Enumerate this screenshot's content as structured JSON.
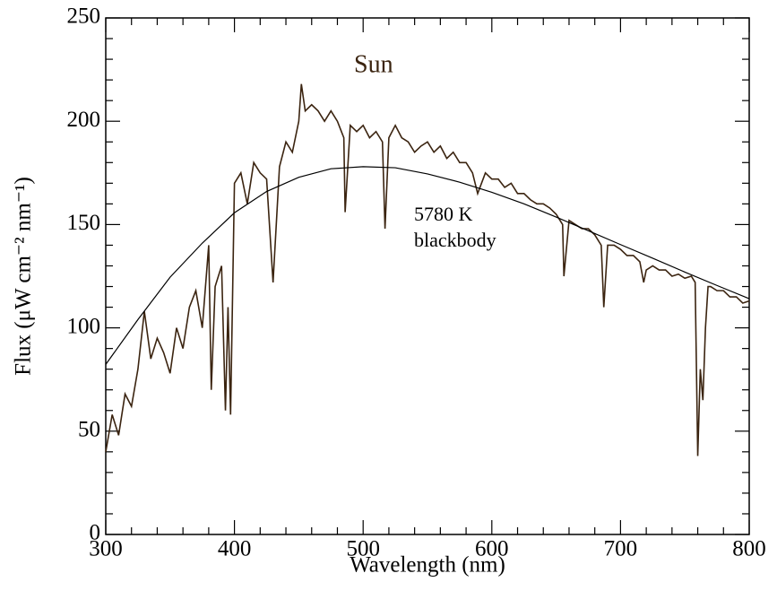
{
  "chart_data": {
    "type": "line",
    "xlabel": "Wavelength  (nm)",
    "ylabel": "Flux  (μW cm⁻² nm⁻¹)",
    "annotations": [
      "Sun",
      "5780 K",
      "blackbody"
    ],
    "xlim": [
      300,
      800
    ],
    "ylim": [
      0,
      250
    ],
    "xticks": [
      300,
      400,
      500,
      600,
      700,
      800
    ],
    "yticks": [
      0,
      50,
      100,
      150,
      200,
      250
    ],
    "xticks_minor": [
      320,
      340,
      360,
      380,
      420,
      440,
      460,
      480,
      520,
      540,
      560,
      580,
      620,
      640,
      660,
      680,
      720,
      740,
      760,
      780
    ],
    "yticks_minor": [
      10,
      20,
      30,
      40,
      60,
      70,
      80,
      90,
      110,
      120,
      130,
      140,
      160,
      170,
      180,
      190,
      210,
      220,
      230,
      240
    ],
    "series": [
      {
        "color": "#3b2410",
        "x": [
          300,
          305,
          310,
          315,
          320,
          325,
          330,
          335,
          340,
          345,
          350,
          355,
          360,
          365,
          370,
          375,
          380,
          382,
          385,
          390,
          393,
          395,
          397,
          400,
          405,
          410,
          415,
          420,
          425,
          430,
          435,
          440,
          445,
          450,
          452,
          455,
          460,
          465,
          470,
          475,
          480,
          485,
          486,
          490,
          495,
          500,
          505,
          510,
          515,
          517,
          520,
          525,
          530,
          535,
          540,
          545,
          550,
          555,
          560,
          565,
          570,
          575,
          580,
          585,
          589,
          595,
          600,
          605,
          610,
          615,
          620,
          625,
          630,
          635,
          640,
          645,
          650,
          655,
          656,
          660,
          665,
          670,
          675,
          680,
          685,
          687,
          690,
          695,
          700,
          705,
          710,
          715,
          718,
          720,
          725,
          730,
          735,
          740,
          745,
          750,
          755,
          758,
          760,
          762,
          764,
          766,
          768,
          770,
          775,
          780,
          785,
          790,
          795,
          800
        ],
        "values": [
          40,
          58,
          48,
          68,
          62,
          80,
          108,
          85,
          95,
          88,
          78,
          100,
          90,
          110,
          118,
          100,
          140,
          70,
          120,
          130,
          60,
          110,
          58,
          170,
          175,
          160,
          180,
          175,
          172,
          122,
          178,
          190,
          185,
          200,
          218,
          205,
          208,
          205,
          200,
          205,
          200,
          192,
          156,
          198,
          195,
          198,
          192,
          195,
          190,
          148,
          192,
          198,
          192,
          190,
          185,
          188,
          190,
          185,
          188,
          182,
          185,
          180,
          180,
          175,
          165,
          175,
          172,
          172,
          168,
          170,
          165,
          165,
          162,
          160,
          160,
          158,
          155,
          150,
          125,
          152,
          150,
          148,
          148,
          145,
          140,
          110,
          140,
          140,
          138,
          135,
          135,
          132,
          122,
          128,
          130,
          128,
          128,
          125,
          126,
          124,
          125,
          122,
          38,
          80,
          65,
          100,
          120,
          120,
          118,
          118,
          115,
          115,
          112,
          113
        ]
      },
      {
        "color": "#000000",
        "x": [
          300,
          325,
          350,
          375,
          400,
          425,
          450,
          475,
          500,
          525,
          550,
          575,
          600,
          625,
          650,
          675,
          700,
          725,
          750,
          775,
          800
        ],
        "values": [
          82.3,
          104,
          124.5,
          141,
          155.7,
          166,
          172.9,
          177,
          178,
          177.5,
          174.5,
          170.5,
          165.6,
          160,
          153.6,
          147,
          140.3,
          133.7,
          127,
          120.5,
          114.1
        ]
      }
    ]
  }
}
